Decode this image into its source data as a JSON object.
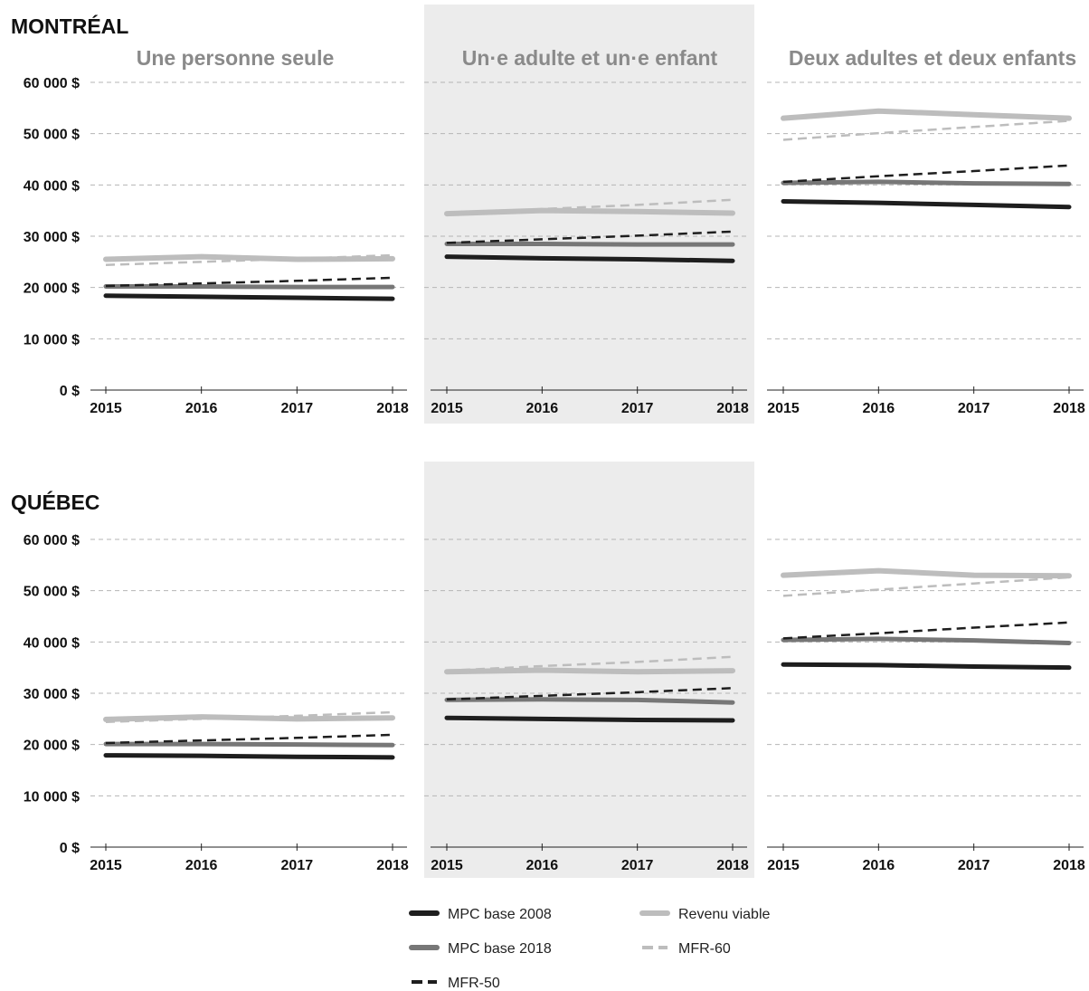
{
  "regions": [
    {
      "title": "MONTRÉAL"
    },
    {
      "title": "QUÉBEC"
    }
  ],
  "panels": [
    {
      "title": "Une personne seule"
    },
    {
      "title": "Un·e adulte et un·e enfant"
    },
    {
      "title": "Deux adultes et deux enfants"
    }
  ],
  "legend": [
    {
      "label": "MPC base 2008",
      "series": "mpc2008"
    },
    {
      "label": "Revenu viable",
      "series": "rv"
    },
    {
      "label": "MPC base 2018",
      "series": "mpc2018"
    },
    {
      "label": "MFR-60",
      "series": "mfr60"
    },
    {
      "label": "MFR-50",
      "series": "mfr50"
    }
  ],
  "series_styles": {
    "mpc2008": {
      "color": "#1e1e1e",
      "dashed": false
    },
    "mpc2018": {
      "color": "#777777",
      "dashed": false
    },
    "rv": {
      "color": "#bdbdbd",
      "dashed": false
    },
    "mfr60": {
      "color": "#bdbdbd",
      "dashed": true
    },
    "mfr50": {
      "color": "#1e1e1e",
      "dashed": true
    }
  },
  "chart_data": [
    {
      "type": "line",
      "region": "MONTRÉAL",
      "panel": "Une personne seule",
      "x": [
        2015,
        2016,
        2017,
        2018
      ],
      "yticks": [
        "0 $",
        "10 000 $",
        "20 000 $",
        "30 000 $",
        "40 000 $",
        "50 000 $",
        "60 000 $"
      ],
      "ylim": [
        0,
        60000
      ],
      "grid": true,
      "series": [
        {
          "name": "MPC base 2008",
          "key": "mpc2008",
          "values": [
            18400,
            18200,
            18000,
            17800
          ]
        },
        {
          "name": "MPC base 2018",
          "key": "mpc2018",
          "values": [
            20200,
            20200,
            20100,
            20100
          ]
        },
        {
          "name": "MFR-50",
          "key": "mfr50",
          "values": [
            20300,
            20800,
            21300,
            21900
          ]
        },
        {
          "name": "MFR-60",
          "key": "mfr60",
          "values": [
            24400,
            25000,
            25600,
            26300
          ]
        },
        {
          "name": "Revenu viable",
          "key": "rv",
          "values": [
            25500,
            26000,
            25500,
            25600
          ]
        }
      ]
    },
    {
      "type": "line",
      "region": "MONTRÉAL",
      "panel": "Un·e adulte et un·e enfant",
      "x": [
        2015,
        2016,
        2017,
        2018
      ],
      "ylim": [
        0,
        60000
      ],
      "grid": true,
      "series": [
        {
          "name": "MPC base 2008",
          "key": "mpc2008",
          "values": [
            26000,
            25700,
            25500,
            25200
          ]
        },
        {
          "name": "MPC base 2018",
          "key": "mpc2018",
          "values": [
            28500,
            28500,
            28400,
            28400
          ]
        },
        {
          "name": "MFR-50",
          "key": "mfr50",
          "values": [
            28700,
            29400,
            30100,
            30900
          ]
        },
        {
          "name": "MFR-60",
          "key": "mfr60",
          "values": [
            34400,
            35300,
            36100,
            37100
          ]
        },
        {
          "name": "Revenu viable",
          "key": "rv",
          "values": [
            34400,
            35000,
            34800,
            34500
          ]
        }
      ]
    },
    {
      "type": "line",
      "region": "MONTRÉAL",
      "panel": "Deux adultes et deux enfants",
      "x": [
        2015,
        2016,
        2017,
        2018
      ],
      "ylim": [
        0,
        60000
      ],
      "grid": true,
      "series": [
        {
          "name": "MPC base 2008",
          "key": "mpc2008",
          "values": [
            36800,
            36500,
            36100,
            35700
          ]
        },
        {
          "name": "MPC base 2018",
          "key": "mpc2018",
          "values": [
            40400,
            40600,
            40300,
            40200
          ]
        },
        {
          "name": "MFR-50",
          "key": "mfr50",
          "values": [
            40600,
            41700,
            42700,
            43800
          ]
        },
        {
          "name": "MFR-60",
          "key": "mfr60",
          "values": [
            48800,
            50100,
            51300,
            52500
          ]
        },
        {
          "name": "Revenu viable",
          "key": "rv",
          "values": [
            53000,
            54400,
            53700,
            53000
          ]
        }
      ]
    },
    {
      "type": "line",
      "region": "QUÉBEC",
      "panel": "Une personne seule",
      "x": [
        2015,
        2016,
        2017,
        2018
      ],
      "yticks": [
        "0 $",
        "10 000 $",
        "20 000 $",
        "30 000 $",
        "40 000 $",
        "50 000 $",
        "60 000 $"
      ],
      "ylim": [
        0,
        60000
      ],
      "grid": true,
      "series": [
        {
          "name": "MPC base 2008",
          "key": "mpc2008",
          "values": [
            17900,
            17800,
            17600,
            17500
          ]
        },
        {
          "name": "MPC base 2018",
          "key": "mpc2018",
          "values": [
            20100,
            20100,
            20000,
            19900
          ]
        },
        {
          "name": "MFR-50",
          "key": "mfr50",
          "values": [
            20300,
            20800,
            21300,
            21900
          ]
        },
        {
          "name": "MFR-60",
          "key": "mfr60",
          "values": [
            24400,
            25000,
            25600,
            26300
          ]
        },
        {
          "name": "Revenu viable",
          "key": "rv",
          "values": [
            24900,
            25400,
            25000,
            25200
          ]
        }
      ]
    },
    {
      "type": "line",
      "region": "QUÉBEC",
      "panel": "Un·e adulte et un·e enfant",
      "x": [
        2015,
        2016,
        2017,
        2018
      ],
      "ylim": [
        0,
        60000
      ],
      "grid": true,
      "series": [
        {
          "name": "MPC base 2008",
          "key": "mpc2008",
          "values": [
            25200,
            25000,
            24800,
            24700
          ]
        },
        {
          "name": "MPC base 2018",
          "key": "mpc2018",
          "values": [
            28700,
            28800,
            28700,
            28200
          ]
        },
        {
          "name": "MFR-50",
          "key": "mfr50",
          "values": [
            28800,
            29500,
            30200,
            31000
          ]
        },
        {
          "name": "MFR-60",
          "key": "mfr60",
          "values": [
            34400,
            35300,
            36100,
            37100
          ]
        },
        {
          "name": "Revenu viable",
          "key": "rv",
          "values": [
            34200,
            34500,
            34200,
            34400
          ]
        }
      ]
    },
    {
      "type": "line",
      "region": "QUÉBEC",
      "panel": "Deux adultes et deux enfants",
      "x": [
        2015,
        2016,
        2017,
        2018
      ],
      "ylim": [
        0,
        60000
      ],
      "grid": true,
      "series": [
        {
          "name": "MPC base 2008",
          "key": "mpc2008",
          "values": [
            35600,
            35500,
            35200,
            35000
          ]
        },
        {
          "name": "MPC base 2018",
          "key": "mpc2018",
          "values": [
            40400,
            40600,
            40300,
            39800
          ]
        },
        {
          "name": "MFR-50",
          "key": "mfr50",
          "values": [
            40700,
            41700,
            42800,
            43800
          ]
        },
        {
          "name": "MFR-60",
          "key": "mfr60",
          "values": [
            49000,
            50200,
            51400,
            52600
          ]
        },
        {
          "name": "Revenu viable",
          "key": "rv",
          "values": [
            53000,
            53900,
            53000,
            52900
          ]
        }
      ]
    }
  ]
}
